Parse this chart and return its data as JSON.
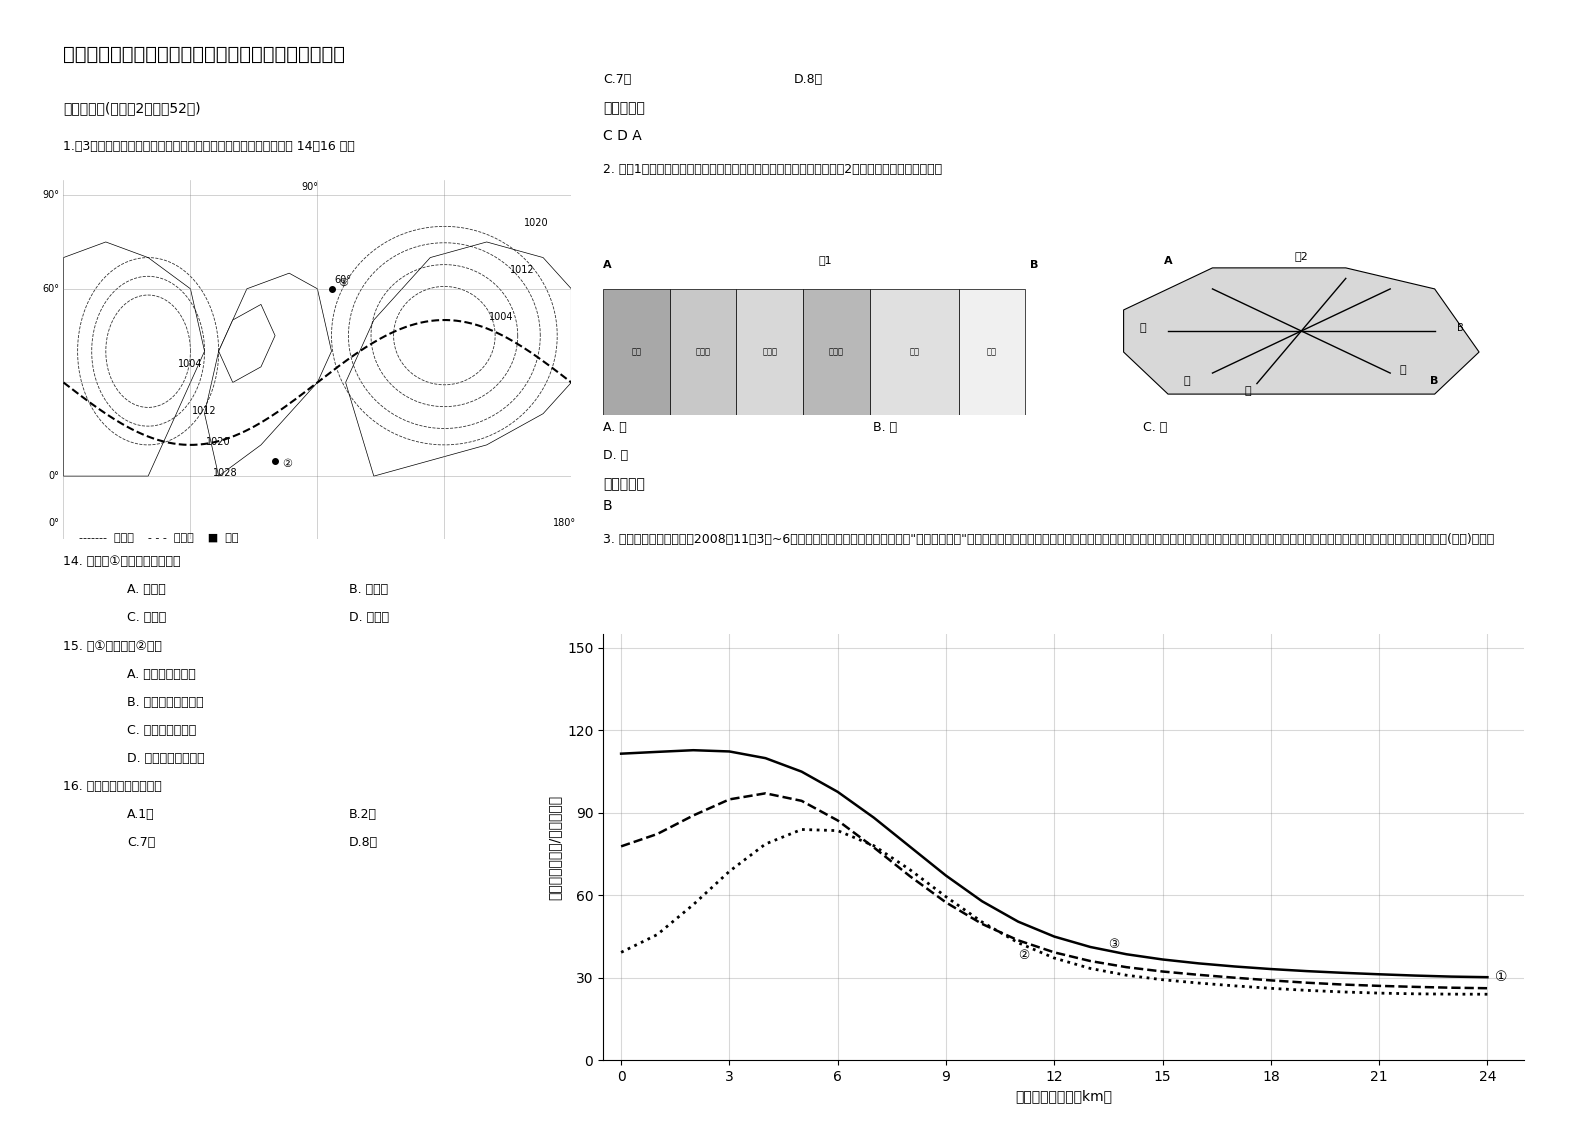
{
  "title": "云南省大理市弥渡县职业中学高三地理模拟试题含解析",
  "section1": "一、选择题(每小题2分，共52分)",
  "q1_text": "1.图3示意某区域某时海平面等压线分布，虚线为晨昏线。读图完成 14～16 题。",
  "q14_text": "14. 此时，①地的盛行风向为：",
  "q14_a": "A. 东北风",
  "q14_b": "B. 东南风",
  "q14_c": "C. 西北风",
  "q14_d": "D. 西南风",
  "q15_text": "15. 与①地相比，②地：",
  "q15_a": "A. 气温年较差较小",
  "q15_b": "B. 正午太阳高度较大",
  "q15_c": "C. 昼长年变化较小",
  "q15_d": "D. 较早进入新的一天",
  "q16_text": "16. 图示现象可能出现在：",
  "q16_a": "A.1月",
  "q16_b": "B.2月",
  "q16_c": "C.7月",
  "q16_d": "D.8月",
  "ref_answer1": "参考答案：",
  "ref_ans1_val": "C D A",
  "q2_text": "2. 下图1是东欧和北亚的植物和农业带分布示意图。该分布图相当于图2中甲～丁四线段所经地区的",
  "q2_a": "A. 甲",
  "q2_b": "B. 乙",
  "q2_c": "C. 丙",
  "q2_d": "D. 丁",
  "fig1_label": "图1",
  "fig2_label": "图2",
  "ref_answer2": "参考答案：",
  "ref_ans2_val": "B",
  "q3_text": "3. 第四届世界城市论坛于2008年11月3日~6日在南京国际博览中心举办。论坛以\"和谐的城镇化\"为主题，共同探讨迅速发展的世界城市化进程带来的各种问题及其如何应对的策略。读某城市不同时期人口密度与距市中心距离关系的变化曲线图(下图)，回答",
  "q3_ylabel": "人口密度（千人/平方千米）",
  "q3_xlabel": "距市中心的距离（km）",
  "q3_yticks": [
    0,
    30,
    60,
    90,
    120,
    150
  ],
  "q3_xticks": [
    0,
    3,
    6,
    9,
    12,
    15,
    18,
    21,
    24
  ],
  "curve1_x": [
    0,
    1,
    2,
    3,
    4,
    5,
    6,
    7,
    8,
    9,
    10,
    11,
    12,
    13,
    14,
    15,
    16,
    17,
    18,
    19,
    20,
    21,
    22,
    23,
    24
  ],
  "curve1_y": [
    110,
    112,
    114,
    115,
    113,
    108,
    100,
    90,
    78,
    65,
    55,
    48,
    43,
    40,
    38,
    36,
    35,
    34,
    33,
    32,
    32,
    31,
    31,
    30,
    30
  ],
  "curve2_x": [
    0,
    1,
    2,
    3,
    4,
    5,
    6,
    7,
    8,
    9,
    10,
    11,
    12,
    13,
    14,
    15,
    16,
    17,
    18,
    19,
    20,
    21,
    22,
    23,
    24
  ],
  "curve2_y": [
    70,
    80,
    90,
    100,
    105,
    100,
    90,
    78,
    65,
    55,
    47,
    42,
    38,
    35,
    33,
    32,
    31,
    30,
    29,
    28,
    27,
    27,
    27,
    26,
    26
  ],
  "curve3_x": [
    0,
    1,
    2,
    3,
    4,
    5,
    6,
    7,
    8,
    9,
    10,
    11,
    12,
    13,
    14,
    15,
    16,
    17,
    18,
    19,
    20,
    21,
    22,
    23,
    24
  ],
  "curve3_y": [
    30,
    40,
    55,
    72,
    85,
    92,
    90,
    82,
    70,
    58,
    48,
    40,
    35,
    32,
    30,
    29,
    28,
    27,
    26,
    25,
    25,
    24,
    24,
    24,
    24
  ],
  "curve1_label": "①",
  "curve2_label": "②",
  "curve3_label": "③",
  "bg_color": "#ffffff",
  "map_label1": "等压线",
  "map_label2": "晨昏线",
  "map_label3": "海洋",
  "pressure_vals": [
    "1020",
    "1012",
    "1004",
    "1004",
    "1012",
    "1020",
    "1028"
  ],
  "lat_labels": [
    "90°",
    "60°",
    "0°",
    "90°"
  ],
  "lon_labels": [
    "0°",
    "180°"
  ]
}
